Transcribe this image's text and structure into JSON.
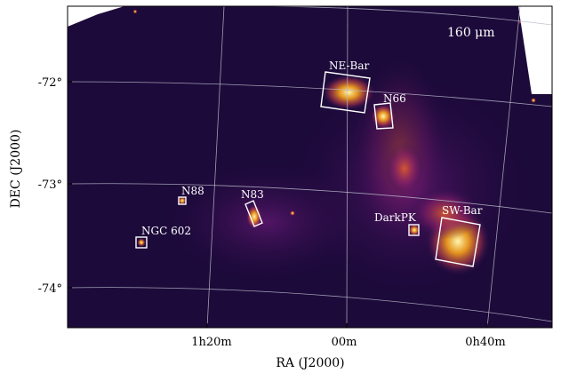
{
  "image": {
    "band_label": "160 μm",
    "colormap": "inferno"
  },
  "axes": {
    "xlabel": "RA (J2000)",
    "ylabel": "DEC (J2000)",
    "x_ticks": [
      "1h20m",
      "00m",
      "0h40m"
    ],
    "y_ticks": [
      "-72°",
      "-73°",
      "-74°"
    ]
  },
  "regions": [
    {
      "label": "NE-Bar"
    },
    {
      "label": "N66"
    },
    {
      "label": "N88"
    },
    {
      "label": "N83"
    },
    {
      "label": "NGC 602"
    },
    {
      "label": "DarkPK"
    },
    {
      "label": "SW-Bar"
    }
  ],
  "colors": {
    "background": "#1c0a3a",
    "frame": "#000000",
    "grid": "#b9b9c9",
    "annotation": "#ffffff"
  }
}
